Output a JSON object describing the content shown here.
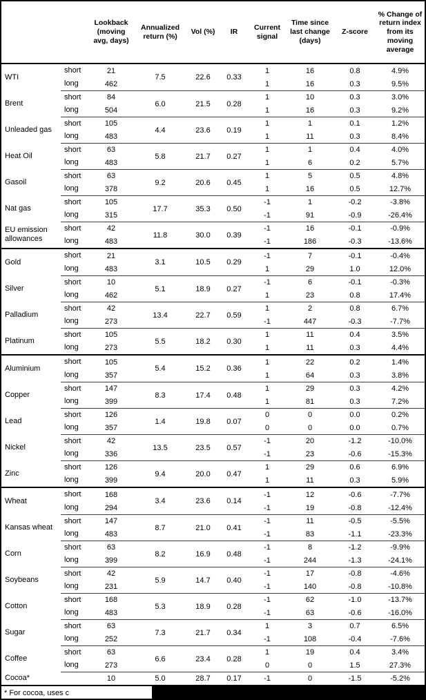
{
  "table": {
    "headers": [
      "Lookback (moving avg, days)",
      "Annualized return (%)",
      "Vol (%)",
      "IR",
      "Current signal",
      "Time since last change (days)",
      "Z-score",
      "% Change of return index from its moving average"
    ],
    "commodities": [
      {
        "name": "WTI",
        "annualized": "7.5",
        "vol": "22.6",
        "ir": "0.33",
        "rows": [
          {
            "leg": "short",
            "lookback": "21",
            "signal": "1",
            "time": "16",
            "zscore": "0.8",
            "pct": "4.9%"
          },
          {
            "leg": "long",
            "lookback": "462",
            "signal": "1",
            "time": "16",
            "zscore": "0.3",
            "pct": "9.5%"
          }
        ]
      },
      {
        "name": "Brent",
        "annualized": "6.0",
        "vol": "21.5",
        "ir": "0.28",
        "rows": [
          {
            "leg": "short",
            "lookback": "84",
            "signal": "1",
            "time": "10",
            "zscore": "0.3",
            "pct": "3.0%"
          },
          {
            "leg": "long",
            "lookback": "504",
            "signal": "1",
            "time": "16",
            "zscore": "0.3",
            "pct": "9.2%"
          }
        ]
      },
      {
        "name": "Unleaded gas",
        "annualized": "4.4",
        "vol": "23.6",
        "ir": "0.19",
        "rows": [
          {
            "leg": "short",
            "lookback": "105",
            "signal": "1",
            "time": "1",
            "zscore": "0.1",
            "pct": "1.2%"
          },
          {
            "leg": "long",
            "lookback": "483",
            "signal": "1",
            "time": "11",
            "zscore": "0.3",
            "pct": "8.4%"
          }
        ]
      },
      {
        "name": "Heat Oil",
        "annualized": "5.8",
        "vol": "21.7",
        "ir": "0.27",
        "rows": [
          {
            "leg": "short",
            "lookback": "63",
            "signal": "1",
            "time": "1",
            "zscore": "0.4",
            "pct": "4.0%"
          },
          {
            "leg": "long",
            "lookback": "483",
            "signal": "1",
            "time": "6",
            "zscore": "0.2",
            "pct": "5.7%"
          }
        ]
      },
      {
        "name": "Gasoil",
        "annualized": "9.2",
        "vol": "20.6",
        "ir": "0.45",
        "rows": [
          {
            "leg": "short",
            "lookback": "63",
            "signal": "1",
            "time": "5",
            "zscore": "0.5",
            "pct": "4.8%"
          },
          {
            "leg": "long",
            "lookback": "378",
            "signal": "1",
            "time": "16",
            "zscore": "0.5",
            "pct": "12.7%"
          }
        ]
      },
      {
        "name": "Nat gas",
        "annualized": "17.7",
        "vol": "35.3",
        "ir": "0.50",
        "rows": [
          {
            "leg": "short",
            "lookback": "105",
            "signal": "-1",
            "time": "1",
            "zscore": "-0.2",
            "pct": "-3.8%"
          },
          {
            "leg": "long",
            "lookback": "315",
            "signal": "-1",
            "time": "91",
            "zscore": "-0.9",
            "pct": "-26.4%"
          }
        ]
      },
      {
        "name": "EU emission allowances",
        "annualized": "11.8",
        "vol": "30.0",
        "ir": "0.39",
        "section_end": true,
        "rows": [
          {
            "leg": "short",
            "lookback": "42",
            "signal": "-1",
            "time": "16",
            "zscore": "-0.1",
            "pct": "-0.9%"
          },
          {
            "leg": "long",
            "lookback": "483",
            "signal": "-1",
            "time": "186",
            "zscore": "-0.3",
            "pct": "-13.6%"
          }
        ]
      },
      {
        "name": "Gold",
        "annualized": "3.1",
        "vol": "10.5",
        "ir": "0.29",
        "rows": [
          {
            "leg": "short",
            "lookback": "21",
            "signal": "-1",
            "time": "7",
            "zscore": "-0.1",
            "pct": "-0.4%"
          },
          {
            "leg": "long",
            "lookback": "483",
            "signal": "1",
            "time": "29",
            "zscore": "1.0",
            "pct": "12.0%"
          }
        ]
      },
      {
        "name": "Silver",
        "annualized": "5.1",
        "vol": "18.9",
        "ir": "0.27",
        "rows": [
          {
            "leg": "short",
            "lookback": "10",
            "signal": "-1",
            "time": "6",
            "zscore": "-0.1",
            "pct": "-0.3%"
          },
          {
            "leg": "long",
            "lookback": "462",
            "signal": "1",
            "time": "23",
            "zscore": "0.8",
            "pct": "17.4%"
          }
        ]
      },
      {
        "name": "Palladium",
        "annualized": "13.4",
        "vol": "22.7",
        "ir": "0.59",
        "rows": [
          {
            "leg": "short",
            "lookback": "42",
            "signal": "1",
            "time": "2",
            "zscore": "0.8",
            "pct": "6.7%"
          },
          {
            "leg": "long",
            "lookback": "273",
            "signal": "-1",
            "time": "447",
            "zscore": "-0.3",
            "pct": "-7.7%"
          }
        ]
      },
      {
        "name": "Platinum",
        "annualized": "5.5",
        "vol": "18.2",
        "ir": "0.30",
        "section_end": true,
        "rows": [
          {
            "leg": "short",
            "lookback": "105",
            "signal": "1",
            "time": "11",
            "zscore": "0.4",
            "pct": "3.5%"
          },
          {
            "leg": "long",
            "lookback": "273",
            "signal": "1",
            "time": "11",
            "zscore": "0.3",
            "pct": "4.4%"
          }
        ]
      },
      {
        "name": "Aluminium",
        "annualized": "5.4",
        "vol": "15.2",
        "ir": "0.36",
        "rows": [
          {
            "leg": "short",
            "lookback": "105",
            "signal": "1",
            "time": "22",
            "zscore": "0.2",
            "pct": "1.4%"
          },
          {
            "leg": "long",
            "lookback": "357",
            "signal": "1",
            "time": "64",
            "zscore": "0.3",
            "pct": "3.8%"
          }
        ]
      },
      {
        "name": "Copper",
        "annualized": "8.3",
        "vol": "17.4",
        "ir": "0.48",
        "rows": [
          {
            "leg": "short",
            "lookback": "147",
            "signal": "1",
            "time": "29",
            "zscore": "0.3",
            "pct": "4.2%"
          },
          {
            "leg": "long",
            "lookback": "399",
            "signal": "1",
            "time": "81",
            "zscore": "0.3",
            "pct": "7.2%"
          }
        ]
      },
      {
        "name": "Lead",
        "annualized": "1.4",
        "vol": "19.8",
        "ir": "0.07",
        "rows": [
          {
            "leg": "short",
            "lookback": "126",
            "signal": "0",
            "time": "0",
            "zscore": "0.0",
            "pct": "0.2%"
          },
          {
            "leg": "long",
            "lookback": "357",
            "signal": "0",
            "time": "0",
            "zscore": "0.0",
            "pct": "0.7%"
          }
        ]
      },
      {
        "name": "Nickel",
        "annualized": "13.5",
        "vol": "23.5",
        "ir": "0.57",
        "rows": [
          {
            "leg": "short",
            "lookback": "42",
            "signal": "-1",
            "time": "20",
            "zscore": "-1.2",
            "pct": "-10.0%"
          },
          {
            "leg": "long",
            "lookback": "336",
            "signal": "-1",
            "time": "23",
            "zscore": "-0.6",
            "pct": "-15.3%"
          }
        ]
      },
      {
        "name": "Zinc",
        "annualized": "9.4",
        "vol": "20.0",
        "ir": "0.47",
        "section_end": true,
        "rows": [
          {
            "leg": "short",
            "lookback": "126",
            "signal": "1",
            "time": "29",
            "zscore": "0.6",
            "pct": "6.9%"
          },
          {
            "leg": "long",
            "lookback": "399",
            "signal": "1",
            "time": "11",
            "zscore": "0.3",
            "pct": "5.9%"
          }
        ]
      },
      {
        "name": "Wheat",
        "annualized": "3.4",
        "vol": "23.6",
        "ir": "0.14",
        "rows": [
          {
            "leg": "short",
            "lookback": "168",
            "signal": "-1",
            "time": "12",
            "zscore": "-0.6",
            "pct": "-7.7%"
          },
          {
            "leg": "long",
            "lookback": "294",
            "signal": "-1",
            "time": "19",
            "zscore": "-0.8",
            "pct": "-12.4%"
          }
        ]
      },
      {
        "name": "Kansas wheat",
        "annualized": "8.7",
        "vol": "21.0",
        "ir": "0.41",
        "rows": [
          {
            "leg": "short",
            "lookback": "147",
            "signal": "-1",
            "time": "11",
            "zscore": "-0.5",
            "pct": "-5.5%"
          },
          {
            "leg": "long",
            "lookback": "483",
            "signal": "-1",
            "time": "83",
            "zscore": "-1.1",
            "pct": "-23.3%"
          }
        ]
      },
      {
        "name": "Corn",
        "annualized": "8.2",
        "vol": "16.9",
        "ir": "0.48",
        "rows": [
          {
            "leg": "short",
            "lookback": "63",
            "signal": "-1",
            "time": "8",
            "zscore": "-1.2",
            "pct": "-9.9%"
          },
          {
            "leg": "long",
            "lookback": "399",
            "signal": "-1",
            "time": "244",
            "zscore": "-1.3",
            "pct": "-24.1%"
          }
        ]
      },
      {
        "name": "Soybeans",
        "annualized": "5.9",
        "vol": "14.7",
        "ir": "0.40",
        "rows": [
          {
            "leg": "short",
            "lookback": "42",
            "signal": "-1",
            "time": "17",
            "zscore": "-0.8",
            "pct": "-4.6%"
          },
          {
            "leg": "long",
            "lookback": "231",
            "signal": "-1",
            "time": "140",
            "zscore": "-0.8",
            "pct": "-10.8%"
          }
        ]
      },
      {
        "name": "Cotton",
        "annualized": "5.3",
        "vol": "18.9",
        "ir": "0.28",
        "rows": [
          {
            "leg": "short",
            "lookback": "168",
            "signal": "-1",
            "time": "62",
            "zscore": "-1.0",
            "pct": "-13.7%"
          },
          {
            "leg": "long",
            "lookback": "483",
            "signal": "-1",
            "time": "63",
            "zscore": "-0.6",
            "pct": "-16.0%"
          }
        ]
      },
      {
        "name": "Sugar",
        "annualized": "7.3",
        "vol": "21.7",
        "ir": "0.34",
        "rows": [
          {
            "leg": "short",
            "lookback": "63",
            "signal": "1",
            "time": "3",
            "zscore": "0.7",
            "pct": "6.5%"
          },
          {
            "leg": "long",
            "lookback": "252",
            "signal": "-1",
            "time": "108",
            "zscore": "-0.4",
            "pct": "-7.6%"
          }
        ]
      },
      {
        "name": "Coffee",
        "annualized": "6.6",
        "vol": "23.4",
        "ir": "0.28",
        "rows": [
          {
            "leg": "short",
            "lookback": "63",
            "signal": "1",
            "time": "19",
            "zscore": "0.4",
            "pct": "3.4%"
          },
          {
            "leg": "long",
            "lookback": "273",
            "signal": "0",
            "time": "0",
            "zscore": "1.5",
            "pct": "27.3%"
          }
        ]
      },
      {
        "name": "Cocoa*",
        "annualized": "5.0",
        "vol": "28.7",
        "ir": "0.17",
        "rows": [
          {
            "leg": "",
            "lookback": "10",
            "signal": "-1",
            "time": "0",
            "zscore": "-1.5",
            "pct": "-5.2%"
          }
        ]
      }
    ]
  },
  "footnote": {
    "visible_text": "* For cocoa, uses c"
  }
}
